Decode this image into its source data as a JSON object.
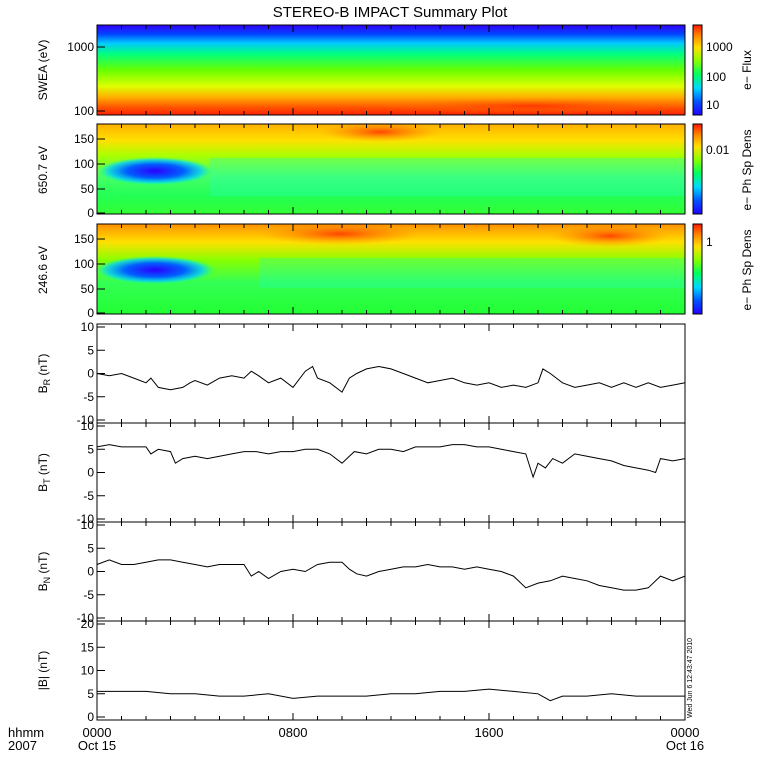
{
  "title": "STEREO-B IMPACT Summary Plot",
  "time_axis": {
    "row1_label": "hhmm",
    "row2_label": "2007",
    "ticks": [
      {
        "hours": 0,
        "time": "0000",
        "date": "Oct 15"
      },
      {
        "hours": 8,
        "time": "0800",
        "date": ""
      },
      {
        "hours": 16,
        "time": "1600",
        "date": ""
      },
      {
        "hours": 24,
        "time": "0000",
        "date": "Oct 16"
      }
    ],
    "range_hours": [
      0,
      24
    ]
  },
  "timestamp": "Wed Jun  6 12:43:47 2010",
  "spectrograms": [
    {
      "ylabel": "SWEA (eV)",
      "colorbar_label": "e− Flux",
      "yticks": [
        "1000",
        "100"
      ],
      "cbar_ticks": [
        "1000",
        "100",
        "10"
      ]
    },
    {
      "ylabel": "650.7 eV",
      "colorbar_label": "e− Ph Sp Dens",
      "yticks": [
        "150",
        "100",
        "50",
        "0"
      ],
      "cbar_ticks": [
        "0.01"
      ]
    },
    {
      "ylabel": "246.6 eV",
      "colorbar_label": "e− Ph Sp Dens",
      "yticks": [
        "150",
        "100",
        "50",
        "0"
      ],
      "cbar_ticks": [
        "1"
      ]
    }
  ],
  "chart_data": [
    {
      "type": "heatmap",
      "ylabel": "SWEA (eV)",
      "ylim": [
        90,
        2000
      ],
      "yscale": "log",
      "colorbar": {
        "label": "e− Flux",
        "ticks": [
          10,
          100,
          1000
        ]
      }
    },
    {
      "type": "heatmap",
      "ylabel": "650.7 eV",
      "ylim": [
        0,
        180
      ],
      "colorbar": {
        "label": "e− Ph Sp Dens",
        "ticks": [
          0.01
        ]
      }
    },
    {
      "type": "heatmap",
      "ylabel": "246.6 eV",
      "ylim": [
        0,
        180
      ],
      "colorbar": {
        "label": "e− Ph Sp Dens",
        "ticks": [
          1
        ]
      }
    },
    {
      "type": "line",
      "ylabel": "B_R (nT)",
      "ylim": [
        -10,
        10
      ],
      "yticks": [
        10,
        5,
        0,
        -5,
        -10
      ],
      "x": [
        0,
        0.5,
        1,
        1.5,
        2,
        2.2,
        2.5,
        3,
        3.5,
        3.8,
        4,
        4.5,
        5,
        5.5,
        6,
        6.3,
        6.6,
        7,
        7.5,
        8,
        8.5,
        8.8,
        9,
        9.5,
        10,
        10.3,
        10.6,
        11,
        11.5,
        12,
        12.5,
        13,
        13.5,
        14,
        14.5,
        15,
        15.5,
        16,
        16.5,
        17,
        17.5,
        18,
        18.2,
        18.5,
        19,
        19.5,
        20,
        20.5,
        21,
        21.5,
        22,
        22.5,
        23,
        23.5,
        24
      ],
      "values": [
        0,
        -0.5,
        0,
        -1,
        -2,
        -1,
        -3,
        -3.5,
        -3,
        -2,
        -1.5,
        -2.5,
        -1,
        -0.5,
        -1,
        0.5,
        -0.5,
        -2,
        -1,
        -3,
        0.5,
        1.5,
        -1,
        -2,
        -4,
        -1,
        0,
        1,
        1.5,
        1,
        0,
        -1,
        -2,
        -1.5,
        -1,
        -2,
        -2.5,
        -2,
        -3,
        -2.5,
        -3,
        -2,
        1,
        0,
        -2,
        -3,
        -2.5,
        -2,
        -3,
        -2,
        -3,
        -2,
        -3,
        -2.5,
        -2
      ]
    },
    {
      "type": "line",
      "ylabel": "B_T (nT)",
      "ylim": [
        -10,
        10
      ],
      "yticks": [
        10,
        5,
        0,
        -5,
        -10
      ],
      "x": [
        0,
        0.5,
        1,
        1.5,
        2,
        2.2,
        2.5,
        3,
        3.2,
        3.5,
        4,
        4.5,
        5,
        5.5,
        6,
        6.5,
        7,
        7.5,
        8,
        8.5,
        9,
        9.5,
        10,
        10.5,
        11,
        11.5,
        12,
        12.5,
        13,
        13.5,
        14,
        14.5,
        15,
        15.5,
        16,
        16.5,
        17,
        17.5,
        17.8,
        18,
        18.3,
        18.6,
        19,
        19.5,
        20,
        20.5,
        21,
        21.5,
        22,
        22.5,
        22.8,
        23,
        23.5,
        24
      ],
      "values": [
        5.5,
        6,
        5.5,
        5.5,
        5.5,
        4,
        5,
        4.5,
        2,
        3,
        3.5,
        3,
        3.5,
        4,
        4.5,
        4.5,
        4,
        4.5,
        4.5,
        5,
        5,
        4,
        2,
        4.5,
        4,
        5,
        5,
        4.5,
        5.5,
        5.5,
        5.5,
        6,
        6,
        5.5,
        5.5,
        5,
        4.5,
        4,
        -1,
        2,
        1,
        3,
        2,
        4,
        3.5,
        3,
        2.5,
        1.5,
        1,
        0.5,
        0,
        3,
        2.5,
        3
      ]
    },
    {
      "type": "line",
      "ylabel": "B_N (nT)",
      "ylim": [
        -10,
        10
      ],
      "yticks": [
        10,
        5,
        0,
        -5,
        -10
      ],
      "x": [
        0,
        0.5,
        1,
        1.5,
        2,
        2.5,
        3,
        3.5,
        4,
        4.5,
        5,
        5.5,
        6,
        6.3,
        6.6,
        7,
        7.5,
        8,
        8.5,
        9,
        9.5,
        10,
        10.3,
        10.6,
        11,
        11.5,
        12,
        12.5,
        13,
        13.5,
        14,
        14.5,
        15,
        15.5,
        16,
        16.5,
        17,
        17.5,
        18,
        18.5,
        19,
        19.5,
        20,
        20.5,
        21,
        21.5,
        22,
        22.5,
        23,
        23.5,
        24
      ],
      "values": [
        1.5,
        2.5,
        1.5,
        1.5,
        2,
        2.5,
        2.5,
        2,
        1.5,
        1,
        1.5,
        1.5,
        1.5,
        -1,
        0,
        -1.5,
        0,
        0.5,
        0,
        1.5,
        2,
        2,
        0.5,
        -0.5,
        -1,
        0,
        0.5,
        1,
        1,
        1.5,
        1,
        1,
        0.5,
        1,
        0.5,
        0,
        -1,
        -3.5,
        -2.5,
        -2,
        -1,
        -1.5,
        -2,
        -3,
        -3.5,
        -4,
        -4,
        -3.5,
        -1,
        -2,
        -1
      ]
    },
    {
      "type": "line",
      "ylabel": "|B| (nT)",
      "ylim": [
        0,
        20
      ],
      "yticks": [
        20,
        15,
        10,
        5,
        0
      ],
      "x": [
        0,
        1,
        2,
        3,
        4,
        5,
        6,
        7,
        8,
        9,
        10,
        11,
        12,
        13,
        14,
        15,
        16,
        17,
        18,
        18.5,
        19,
        20,
        21,
        22,
        23,
        24
      ],
      "values": [
        5.5,
        5.5,
        5.5,
        5,
        5,
        4.5,
        4.5,
        5,
        4,
        4.5,
        4.5,
        4.5,
        5,
        5,
        5.5,
        5.5,
        6,
        5.5,
        5,
        3.5,
        4.5,
        4.5,
        5,
        4.5,
        4.5,
        4.5
      ]
    }
  ],
  "line_panels": [
    {
      "ylabel": "B",
      "sub": "R",
      "unit": "(nT)"
    },
    {
      "ylabel": "B",
      "sub": "T",
      "unit": "(nT)"
    },
    {
      "ylabel": "B",
      "sub": "N",
      "unit": "(nT)"
    },
    {
      "ylabel": "|B|",
      "sub": "",
      "unit": "(nT)"
    }
  ]
}
